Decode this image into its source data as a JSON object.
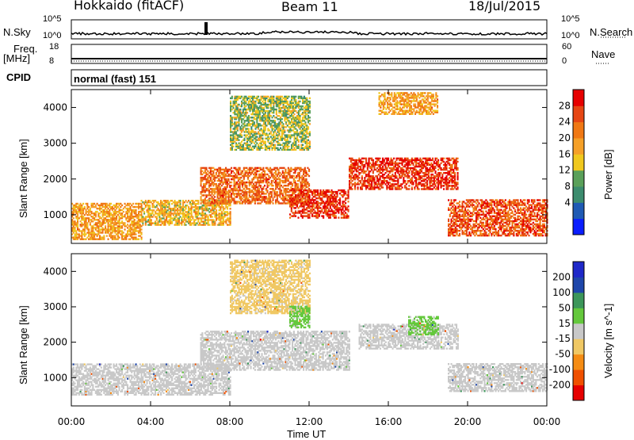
{
  "header": {
    "station": "Hokkaido (fitACF)",
    "beam": "Beam 11",
    "date": "18/Jul/2015"
  },
  "top_panels": {
    "nsky_label": "N.Sky",
    "nsky_ticks": [
      "10^5",
      "10^0"
    ],
    "nsearch_label": "N.Search",
    "nsearch_ticks": [
      "10^5",
      "10^0"
    ],
    "freq_label": "Freq.",
    "freq_unit": "[MHz]",
    "freq_ticks": [
      "18",
      "8"
    ],
    "nave_label": "Nave",
    "nave_ticks": [
      "60",
      "0"
    ],
    "cpid_label": "CPID",
    "cpid_value": "normal (fast) 151"
  },
  "x_axis": {
    "title": "Time UT",
    "ticks": [
      "00:00",
      "04:00",
      "08:00",
      "12:00",
      "16:00",
      "20:00",
      "00:00"
    ]
  },
  "colors": {
    "power_scale": [
      "#0a1eff",
      "#1f5ab4",
      "#3c8c6e",
      "#5aa05a",
      "#f0c81e",
      "#f5a028",
      "#f07814",
      "#e64614",
      "#e60000"
    ],
    "velocity_scale": [
      "#e60000",
      "#f05000",
      "#f58c14",
      "#f0c864",
      "#c8c8c8",
      "#64c83c",
      "#3c965a",
      "#1e46aa",
      "#1e28c8"
    ]
  },
  "chart_data": [
    {
      "type": "heatmap",
      "name": "power",
      "ylabel": "Slant Range [km]",
      "yticks": [
        "1000",
        "2000",
        "3000",
        "4000"
      ],
      "xlim": [
        0,
        24
      ],
      "ylim": [
        200,
        4500
      ],
      "colorbar": {
        "label": "Power [dB]",
        "ticks": [
          "28",
          "24",
          "20",
          "16",
          "12",
          "8",
          "4"
        ],
        "range": [
          0,
          32
        ]
      },
      "features": [
        {
          "t0": 0.0,
          "t1": 3.5,
          "r0": 300,
          "r1": 1300,
          "value": 20
        },
        {
          "t0": 3.5,
          "t1": 8.0,
          "r0": 700,
          "r1": 1400,
          "value": 18
        },
        {
          "t0": 6.5,
          "t1": 12.0,
          "r0": 1300,
          "r1": 2300,
          "value": 24
        },
        {
          "t0": 11.0,
          "t1": 14.0,
          "r0": 900,
          "r1": 1700,
          "value": 28
        },
        {
          "t0": 14.0,
          "t1": 19.5,
          "r0": 1700,
          "r1": 2600,
          "value": 28
        },
        {
          "t0": 19.0,
          "t1": 24.0,
          "r0": 400,
          "r1": 1400,
          "value": 26
        },
        {
          "t0": 8.0,
          "t1": 12.0,
          "r0": 2800,
          "r1": 4300,
          "value": 14
        },
        {
          "t0": 15.5,
          "t1": 18.5,
          "r0": 3800,
          "r1": 4400,
          "value": 20
        }
      ]
    },
    {
      "type": "heatmap",
      "name": "velocity",
      "ylabel": "Slant Range [km]",
      "yticks": [
        "1000",
        "2000",
        "3000",
        "4000"
      ],
      "xlim": [
        0,
        24
      ],
      "ylim": [
        200,
        4500
      ],
      "colorbar": {
        "label": "Velocity [m s^-1]",
        "ticks": [
          "200",
          "100",
          "50",
          "15",
          "-15",
          "-50",
          "-100",
          "-200"
        ],
        "range": [
          -250,
          250
        ]
      },
      "features": [
        {
          "t0": 0.0,
          "t1": 8.0,
          "r0": 500,
          "r1": 1400,
          "value": 0
        },
        {
          "t0": 6.5,
          "t1": 14.0,
          "r0": 1200,
          "r1": 2300,
          "value": 0
        },
        {
          "t0": 14.5,
          "t1": 19.5,
          "r0": 1800,
          "r1": 2500,
          "value": 5
        },
        {
          "t0": 17.0,
          "t1": 18.5,
          "r0": 2200,
          "r1": 2700,
          "value": 40
        },
        {
          "t0": 19.0,
          "t1": 24.0,
          "r0": 600,
          "r1": 1400,
          "value": 0
        },
        {
          "t0": 8.0,
          "t1": 12.0,
          "r0": 2800,
          "r1": 4300,
          "value": -40
        },
        {
          "t0": 11.0,
          "t1": 12.0,
          "r0": 2400,
          "r1": 3000,
          "value": 40
        }
      ]
    }
  ]
}
